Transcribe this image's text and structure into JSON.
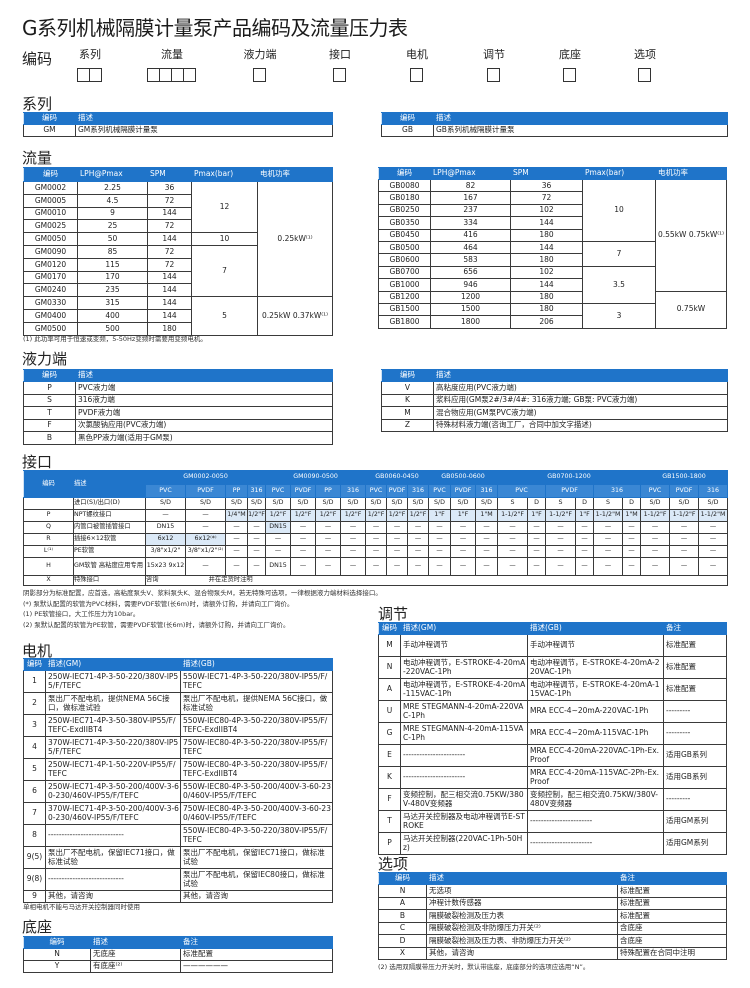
{
  "title": "G系列机械隔膜计量泵产品编码及流量压力表",
  "code_row": {
    "label": "编码",
    "fields": [
      {
        "label": "系列",
        "boxes": 2
      },
      {
        "label": "流量",
        "boxes": 4
      },
      {
        "label": "液力端",
        "boxes": 1
      },
      {
        "label": "接口",
        "boxes": 1
      },
      {
        "label": "电机",
        "boxes": 1
      },
      {
        "label": "调节",
        "boxes": 1
      },
      {
        "label": "底座",
        "boxes": 1
      },
      {
        "label": "选项",
        "boxes": 1
      }
    ]
  },
  "series": {
    "heading": "系列",
    "headers": [
      "编码",
      "描述"
    ],
    "left": [
      [
        "GM",
        "GM系列机械隔膜计量泵"
      ]
    ],
    "right": [
      [
        "GB",
        "GB系列机械隔膜计量泵"
      ]
    ]
  },
  "flow": {
    "heading": "流量",
    "headers": [
      "编码",
      "LPH@Pmax",
      "SPM",
      "Pmax(bar)",
      "电机功率"
    ],
    "gm": [
      [
        "GM0002",
        "2.25",
        "36",
        "12",
        "0.25kW⁽¹⁾"
      ],
      [
        "GM0005",
        "4.5",
        "72",
        "12",
        "0.25kW⁽¹⁾"
      ],
      [
        "GM0010",
        "9",
        "144",
        "12",
        "0.25kW⁽¹⁾"
      ],
      [
        "GM0025",
        "25",
        "72",
        "12",
        "0.25kW⁽¹⁾"
      ],
      [
        "GM0050",
        "50",
        "144",
        "10",
        "0.25kW⁽¹⁾"
      ],
      [
        "GM0090",
        "85",
        "72",
        "7",
        "0.25kW⁽¹⁾"
      ],
      [
        "GM0120",
        "115",
        "72",
        "7",
        "0.25kW⁽¹⁾"
      ],
      [
        "GM0170",
        "170",
        "144",
        "7",
        "0.25kW⁽¹⁾"
      ],
      [
        "GM0240",
        "235",
        "144",
        "7",
        "0.25kW⁽¹⁾"
      ],
      [
        "GM0330",
        "315",
        "144",
        "5",
        "0.25kW 0.37kW⁽¹⁾"
      ],
      [
        "GM0400",
        "400",
        "144",
        "5",
        "0.25kW 0.37kW⁽¹⁾"
      ],
      [
        "GM0500",
        "500",
        "180",
        "5",
        "0.25kW 0.37kW⁽¹⁾"
      ]
    ],
    "gb": [
      [
        "GB0080",
        "82",
        "36",
        "10",
        "0.55kW 0.75kW⁽¹⁾"
      ],
      [
        "GB0180",
        "167",
        "72",
        "10",
        "0.55kW 0.75kW⁽¹⁾"
      ],
      [
        "GB0250",
        "237",
        "102",
        "10",
        "0.55kW 0.75kW⁽¹⁾"
      ],
      [
        "GB0350",
        "334",
        "144",
        "10",
        "0.55kW 0.75kW⁽¹⁾"
      ],
      [
        "GB0450",
        "416",
        "180",
        "10",
        "0.55kW 0.75kW⁽¹⁾"
      ],
      [
        "GB0500",
        "464",
        "144",
        "7",
        "0.55kW 0.75kW⁽¹⁾"
      ],
      [
        "GB0600",
        "583",
        "180",
        "7",
        "0.55kW 0.75kW⁽¹⁾"
      ],
      [
        "GB0700",
        "656",
        "102",
        "3.5",
        "0.55kW 0.75kW⁽¹⁾"
      ],
      [
        "GB1000",
        "946",
        "144",
        "3.5",
        "0.55kW 0.75kW⁽¹⁾"
      ],
      [
        "GB1200",
        "1200",
        "180",
        "3.5",
        "0.75kW"
      ],
      [
        "GB1500",
        "1500",
        "180",
        "3",
        "0.75kW"
      ],
      [
        "GB1800",
        "1800",
        "206",
        "3",
        "0.75kW"
      ]
    ],
    "note": "(1) 此功率可用于恒速或变频，5-50Hz变频时需要用变频电机。"
  },
  "wet_end": {
    "heading": "液力端",
    "headers": [
      "编码",
      "描述"
    ],
    "left": [
      [
        "P",
        "PVC液力端"
      ],
      [
        "S",
        "316液力端"
      ],
      [
        "T",
        "PVDF液力端"
      ],
      [
        "F",
        "次氯酸钠应用(PVC液力端)"
      ],
      [
        "B",
        "黑色PP液力端(适用于GM泵)"
      ]
    ],
    "right": [
      [
        "V",
        "高粘度应用(PVC液力端)"
      ],
      [
        "K",
        "浆料应用(GM泵2#/3#/4#: 316液力端; GB泵: PVC液力端)"
      ],
      [
        "M",
        "混合物应用(GM泵PVC液力端)"
      ],
      [
        "Z",
        "特殊材料液力端(咨询工厂，合同中加文字描述)"
      ]
    ]
  },
  "port": {
    "heading": "接口",
    "headers": [
      "编码",
      "描述"
    ],
    "groups": [
      {
        "label": "GM0002-0050",
        "subs": [
          "PVC",
          "PVDF",
          "PP",
          "316"
        ]
      },
      {
        "label": "GM0090-0500",
        "subs": [
          "PVC",
          "PVDF",
          "PP",
          "316"
        ]
      },
      {
        "label": "GB0060-0450",
        "subs": [
          "PVC",
          "PVDF",
          "316"
        ]
      },
      {
        "label": "GB0500-0600",
        "subs": [
          "PVC",
          "PVDF",
          "316"
        ]
      },
      {
        "label": "GB0700-1200",
        "subs": [
          "PVC",
          "PVDF",
          "316"
        ]
      },
      {
        "label": "GB1500-1800",
        "subs": [
          "PVC",
          "PVDF",
          "316"
        ]
      }
    ],
    "rows": [
      [
        "",
        "进口(S)/出口(D)",
        "S/D",
        "S/D",
        "S/D",
        "S/D",
        "S/D",
        "S/D",
        "S/D",
        "S/D",
        "S/D",
        "S/D",
        "S/D",
        "S/D",
        "S/D",
        "S/D",
        "S",
        "D",
        "S",
        "D",
        "S",
        "D",
        "S/D",
        "S/D",
        "S/D"
      ],
      [
        "P",
        "NPT螺纹接口",
        "—",
        "—",
        "1/4\"M",
        "1/2\"F",
        "1/2\"F",
        "1/2\"F",
        "1/2\"F",
        "1/2\"F",
        "1/2\"F",
        "1/2\"F",
        "1/2\"F",
        "1\"F",
        "1\"F",
        "1\"M",
        "1-1/2\"F",
        "1\"F",
        "1-1/2\"F",
        "1\"F",
        "1-1/2\"M",
        "1\"M",
        "1-1/2\"F",
        "1-1/2\"F",
        "1-1/2\"M"
      ],
      [
        "Q",
        "内管口被管插管接口",
        "DN15",
        "—",
        "—",
        "—",
        "DN15",
        "—",
        "—",
        "—",
        "—",
        "—",
        "—",
        "—",
        "—",
        "—",
        "—",
        "—",
        "—",
        "—",
        "—",
        "—",
        "—",
        "—",
        "—"
      ],
      [
        "R",
        "插接6×12软管",
        "6x12",
        "6x12⁽*⁾",
        "—",
        "—",
        "—",
        "—",
        "—",
        "—",
        "—",
        "—",
        "—",
        "—",
        "—",
        "—",
        "—",
        "—",
        "—",
        "—",
        "—",
        "—",
        "—",
        "—",
        "—"
      ],
      [
        "L⁽¹⁾",
        "PE软管",
        "3/8\"x1/2\"",
        "3/8\"x1/2\"⁽²⁾",
        "—",
        "—",
        "—",
        "—",
        "—",
        "—",
        "—",
        "—",
        "—",
        "—",
        "—",
        "—",
        "—",
        "—",
        "—",
        "—",
        "—",
        "—",
        "—",
        "—",
        "—"
      ],
      [
        "H",
        "GM软管 高粘度应用专用",
        "15x23 9x12",
        "—",
        "—",
        "—",
        "DN15",
        "—",
        "—",
        "—",
        "—",
        "—",
        "—",
        "—",
        "—",
        "—",
        "—",
        "—",
        "—",
        "—",
        "—",
        "—",
        "—",
        "—",
        "—"
      ]
    ],
    "special": {
      "code": "X",
      "desc": "特殊接口",
      "value": "咨询",
      "remark": "并在定货时注明"
    },
    "notes": [
      "阴影部分为标准配置，应首选，高粘度泵头V、浆料泵头K、混合物泵头M，若无特殊可选项，一律根据液力端材料选择接口。",
      "(*) 泵默认配置的软管为PVC材料，需要PVDF软管(长6m)时，请额外订购，并请向工厂询价。",
      "(1) PE软管接口，大工作压力为10bar。",
      "(2) 泵默认配置的软管为PE软管，需要PVDF软管(长6m)时，请额外订购，并请向工厂询价。"
    ]
  },
  "motor": {
    "heading": "电机",
    "headers": [
      "编码",
      "描述(GM)",
      "描述(GB)"
    ],
    "rows": [
      [
        "1",
        "250W-IEC71-4P-3-50-220/380V-IP55/F/TEFC",
        "550W-IEC71-4P-3-50-220/380V-IP55/F/TEFC"
      ],
      [
        "2",
        "泵出厂不配电机，提供NEMA 56C接口，做标准试验",
        "泵出厂不配电机，提供NEMA 56C接口，做标准试验"
      ],
      [
        "3",
        "250W-IEC71-4P-3-50-380V-IP55/F/TEFC-ExdIIBT4",
        "550W-IEC80-4P-3-50-220/380V-IP55/F/TEFC-ExdIIBT4"
      ],
      [
        "4",
        "370W-IEC71-4P-3-50-220/380V-IP55/F/TEFC",
        "750W-IEC80-4P-3-50-220/380V-IP55/F/TEFC"
      ],
      [
        "5",
        "250W-IEC71-4P-1-50-220V-IP55/F/TEFC",
        "750W-IEC80-4P-3-50-220/380V-IP55/F/TEFC-ExdIIBT4"
      ],
      [
        "6",
        "250W-IEC71-4P-3-50-200/400V-3-60-230/460V-IP55/F/TEFC",
        "550W-IEC80-4P-3-50-200/400V-3-60-230/460V-IP55/F/TEFC"
      ],
      [
        "7",
        "370W-IEC71-4P-3-50-200/400V-3-60-230/460V-IP55/F/TEFC",
        "750W-IEC80-4P-3-50-200/400V-3-60-230/460V-IP55/F/TEFC"
      ],
      [
        "8",
        "----------------------------",
        "550W-IEC80-4P-3-50-220/380V-IP55/F/TEFC"
      ],
      [
        "9(5)",
        "泵出厂不配电机，保留IEC71接口，做标准试验",
        "泵出厂不配电机，保留IEC71接口，做标准试验"
      ],
      [
        "9(8)",
        "----------------------------",
        "泵出厂不配电机，保留IEC80接口，做标准试验"
      ],
      [
        "9",
        "其他，请咨询",
        "其他，请咨询"
      ]
    ],
    "note": "单相电机不能与马达开关控制器同时使用"
  },
  "adjust": {
    "heading": "调节",
    "headers": [
      "编码",
      "描述(GM)",
      "描述(GB)",
      "备注"
    ],
    "rows": [
      [
        "M",
        "手动冲程调节",
        "手动冲程调节",
        "标准配置"
      ],
      [
        "N",
        "电动冲程调节，E-STROKE-4-20mA-220VAC-1Ph",
        "电动冲程调节，E-STROKE-4-20mA-220VAC-1Ph",
        "标准配置"
      ],
      [
        "A",
        "电动冲程调节，E-STROKE-4-20mA-115VAC-1Ph",
        "电动冲程调节，E-STROKE-4-20mA-115VAC-1Ph",
        "标准配置"
      ],
      [
        "U",
        "MRE STEGMANN-4-20mA-220VAC-1Ph",
        "MRA ECC-4~20mA-220VAC-1Ph",
        "---------"
      ],
      [
        "G",
        "MRE STEGMANN-4-20mA-115VAC-1Ph",
        "MRA ECC-4~20mA-115VAC-1Ph",
        "---------"
      ],
      [
        "E",
        "-----------------------",
        "MRA ECC-4-20mA-220VAC-1Ph-Ex. Proof",
        "适用GB系列"
      ],
      [
        "K",
        "-----------------------",
        "MRA ECC-4-20mA-115VAC-2Ph-Ex. Proof",
        "适用GB系列"
      ],
      [
        "F",
        "变频控制，配三相交流0.75KW/380V-480V变频器",
        "变频控制，配三相交流0.75KW/380V-480V变频器",
        "---------"
      ],
      [
        "T",
        "马达开关控制器及电动冲程调节E-STROKE",
        "-----------------------",
        "适用GM系列"
      ],
      [
        "P",
        "马达开关控制器(220VAC-1Ph-50Hz)",
        "-----------------------",
        "适用GM系列"
      ]
    ]
  },
  "options": {
    "heading": "选项",
    "headers": [
      "编码",
      "描述",
      "备注"
    ],
    "rows": [
      [
        "N",
        "无选项",
        "标准配置"
      ],
      [
        "A",
        "冲程计数传感器",
        "标准配置"
      ],
      [
        "B",
        "隔膜破裂检测及压力表",
        "标准配置"
      ],
      [
        "C",
        "隔膜破裂检测及非防爆压力开关⁽²⁾",
        "含底座"
      ],
      [
        "D",
        "隔膜破裂检测及压力表、非防爆压力开关⁽²⁾",
        "含底座"
      ],
      [
        "X",
        "其他，请咨询",
        "特殊配置在合同中注明"
      ]
    ],
    "note": "(2) 选用双隔膜带压力开关时，默认带底座，底座部分的选项应选用“N”。"
  },
  "base": {
    "heading": "底座",
    "headers": [
      "编码",
      "描述",
      "备注"
    ],
    "rows": [
      [
        "N",
        "无底座",
        "标准配置"
      ],
      [
        "Y",
        "有底座⁽²⁾",
        "——————"
      ]
    ]
  },
  "colors": {
    "header_blue": "#1f74c9",
    "highlight": "#dbe9f7"
  }
}
